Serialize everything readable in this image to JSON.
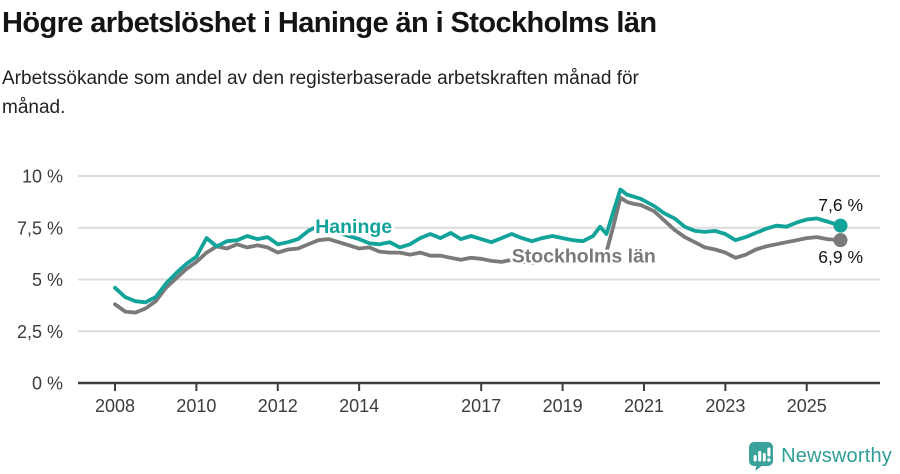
{
  "title": "Högre arbetslöshet i Haninge än i Stockholms län",
  "subtitle": "Arbetssökande som andel av den registerbaserade arbetskraften månad för månad.",
  "branding": {
    "name": "Newsworthy",
    "icon": "newsworthy-chart-bubble-icon"
  },
  "colors": {
    "haninge": "#12a39a",
    "stockholm": "#7a7a7a",
    "grid": "#dcdcdc",
    "axis": "#3c3c3c",
    "tick_text": "#3c3c3c",
    "annotation_text": "#141414",
    "brand": "#2f9e97",
    "background": "#ffffff"
  },
  "chart_data": {
    "type": "line",
    "title": "Högre arbetslöshet i Haninge än i Stockholms län",
    "subtitle": "Arbetssökande som andel av den registerbaserade arbetskraften månad för månad.",
    "x_unit": "decimal_year",
    "xlabel": "",
    "ylabel": "",
    "xlim": [
      2007.1,
      2026.8
    ],
    "ylim": [
      0,
      10
    ],
    "grid": "horizontal",
    "legend_position": "inline-labels",
    "x": [
      2008,
      2008.25,
      2008.5,
      2008.75,
      2009,
      2009.25,
      2009.5,
      2009.75,
      2010,
      2010.25,
      2010.5,
      2010.75,
      2011,
      2011.25,
      2011.5,
      2011.75,
      2012,
      2012.25,
      2012.5,
      2012.75,
      2013,
      2013.25,
      2013.5,
      2013.75,
      2014,
      2014.25,
      2014.5,
      2014.75,
      2015,
      2015.25,
      2015.5,
      2015.75,
      2016,
      2016.25,
      2016.5,
      2016.75,
      2017,
      2017.25,
      2017.5,
      2017.75,
      2018,
      2018.25,
      2018.5,
      2018.75,
      2019,
      2019.25,
      2019.5,
      2019.75,
      2019.92,
      2020.08,
      2020.25,
      2020.42,
      2020.58,
      2020.75,
      2020.92,
      2021.25,
      2021.5,
      2021.75,
      2022,
      2022.25,
      2022.5,
      2022.75,
      2023,
      2023.25,
      2023.5,
      2023.75,
      2024,
      2024.25,
      2024.5,
      2024.75,
      2025,
      2025.25,
      2025.5,
      2025.83
    ],
    "series": [
      {
        "name": "Haninge",
        "color": "#12a39a",
        "end_label": "7,6 %",
        "end_value": 7.6,
        "inline_label": {
          "year": 2012.92,
          "pct": 7.58
        },
        "values": [
          4.6,
          4.15,
          3.95,
          3.9,
          4.15,
          4.8,
          5.3,
          5.75,
          6.1,
          7.0,
          6.6,
          6.85,
          6.9,
          7.1,
          6.95,
          7.05,
          6.7,
          6.8,
          6.95,
          7.35,
          7.6,
          7.45,
          7.25,
          7.1,
          6.95,
          6.75,
          6.7,
          6.8,
          6.55,
          6.7,
          7.0,
          7.2,
          7.0,
          7.25,
          6.95,
          7.1,
          6.95,
          6.8,
          7.0,
          7.2,
          7.0,
          6.85,
          7.0,
          7.1,
          7.0,
          6.9,
          6.85,
          7.1,
          7.55,
          7.2,
          8.3,
          9.35,
          9.1,
          9.0,
          8.9,
          8.55,
          8.2,
          7.95,
          7.55,
          7.35,
          7.3,
          7.35,
          7.2,
          6.9,
          7.05,
          7.25,
          7.45,
          7.6,
          7.55,
          7.75,
          7.9,
          7.95,
          7.8,
          7.6
        ]
      },
      {
        "name": "Stockholms län",
        "color": "#7a7a7a",
        "end_label": "6,9 %",
        "end_value": 6.9,
        "inline_label": {
          "year": 2017.75,
          "pct": 6.15
        },
        "values": [
          3.8,
          3.45,
          3.4,
          3.6,
          3.95,
          4.6,
          5.05,
          5.5,
          5.85,
          6.3,
          6.6,
          6.5,
          6.7,
          6.55,
          6.65,
          6.55,
          6.3,
          6.45,
          6.5,
          6.7,
          6.9,
          6.95,
          6.8,
          6.65,
          6.5,
          6.55,
          6.35,
          6.3,
          6.3,
          6.2,
          6.3,
          6.15,
          6.15,
          6.05,
          5.95,
          6.05,
          6.0,
          5.9,
          5.85,
          5.95,
          5.85,
          5.8,
          5.9,
          5.95,
          6.0,
          6.05,
          6.1,
          6.15,
          6.2,
          6.35,
          7.6,
          8.95,
          8.75,
          8.65,
          8.6,
          8.3,
          7.85,
          7.4,
          7.05,
          6.8,
          6.55,
          6.45,
          6.3,
          6.05,
          6.2,
          6.45,
          6.6,
          6.7,
          6.8,
          6.9,
          7.0,
          7.05,
          6.95,
          6.9
        ]
      }
    ],
    "xticks": {
      "values": [
        2008,
        2010,
        2012,
        2014,
        2017,
        2019,
        2021,
        2023,
        2025
      ],
      "labels": [
        "2008",
        "2010",
        "2012",
        "2014",
        "2017",
        "2019",
        "2021",
        "2023",
        "2025"
      ]
    },
    "yticks": {
      "values": [
        0,
        2.5,
        5,
        7.5,
        10
      ],
      "labels": [
        "0 %",
        "2,5 %",
        "5 %",
        "7,5 %",
        "10 %"
      ]
    }
  }
}
